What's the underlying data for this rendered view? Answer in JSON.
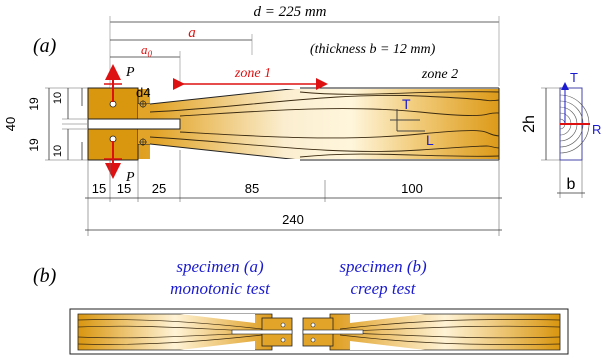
{
  "panel_a": {
    "label": "(a)",
    "dim_d": "d = 225 mm",
    "dim_a": "a",
    "dim_a0_base": "a",
    "dim_a0_sub": "0",
    "thickness_note": "(thickness b = 12 mm)",
    "load_top": "P",
    "load_bottom": "P",
    "hole_label": "d4",
    "zone1": "zone 1",
    "zone2": "zone 2",
    "axis_T": "T",
    "axis_L": "L",
    "left_dims": [
      "40",
      "19",
      "19",
      "10",
      "10"
    ],
    "bottom_dims": [
      "15",
      "15",
      "25",
      "85",
      "100"
    ],
    "total_length": "240",
    "section_height": "2h",
    "section_width": "b",
    "section_T": "T",
    "section_R": "R"
  },
  "panel_b": {
    "label": "(b)",
    "caption_a_line1": "specimen (a)",
    "caption_a_line2": "monotonic test",
    "caption_b_line1": "specimen (b)",
    "caption_b_line2": "creep test"
  },
  "colors": {
    "annotation_red": "#dd1111",
    "annotation_blue": "#1a1ad0",
    "wood_dark": "#d9960f",
    "wood_light": "#fff6dc"
  }
}
